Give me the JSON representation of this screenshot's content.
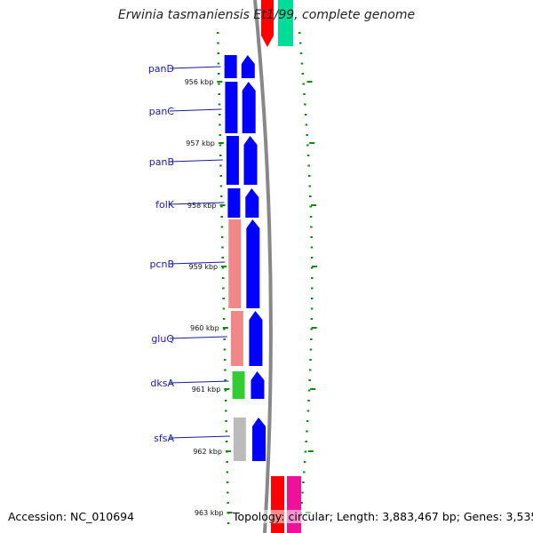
{
  "title": "Erwinia tasmaniensis Et1/99, complete genome",
  "footer": {
    "accession": "Accession: NC_010694",
    "summary": "Topology: circular; Length: 3,883,467 bp; Genes: 3,535"
  },
  "ticks": [
    "956 kbp",
    "957 kbp",
    "958 kbp",
    "959 kbp",
    "960 kbp",
    "961 kbp",
    "962 kbp",
    "963 kbp"
  ],
  "genes": [
    {
      "name": "panD",
      "color": "#0000ff"
    },
    {
      "name": "panC",
      "color": "#0000ff"
    },
    {
      "name": "panB",
      "color": "#0000ff"
    },
    {
      "name": "folK",
      "color": "#0000ff"
    },
    {
      "name": "pcnB",
      "color": "#f08888"
    },
    {
      "name": "gluQ",
      "color": "#f08888"
    },
    {
      "name": "dksA",
      "color": "#33cc33"
    },
    {
      "name": "sfsA",
      "color": "#bbbbbb"
    }
  ],
  "colors": {
    "backbone": "#888888",
    "tick": "#118811",
    "label_line": "#1a1aa6",
    "cds_strand": "#0000ff",
    "top_red": "#ff0000",
    "top_teal": "#00dd99",
    "bottom_red": "#ff0000",
    "bottom_magenta": "#ee1199"
  }
}
